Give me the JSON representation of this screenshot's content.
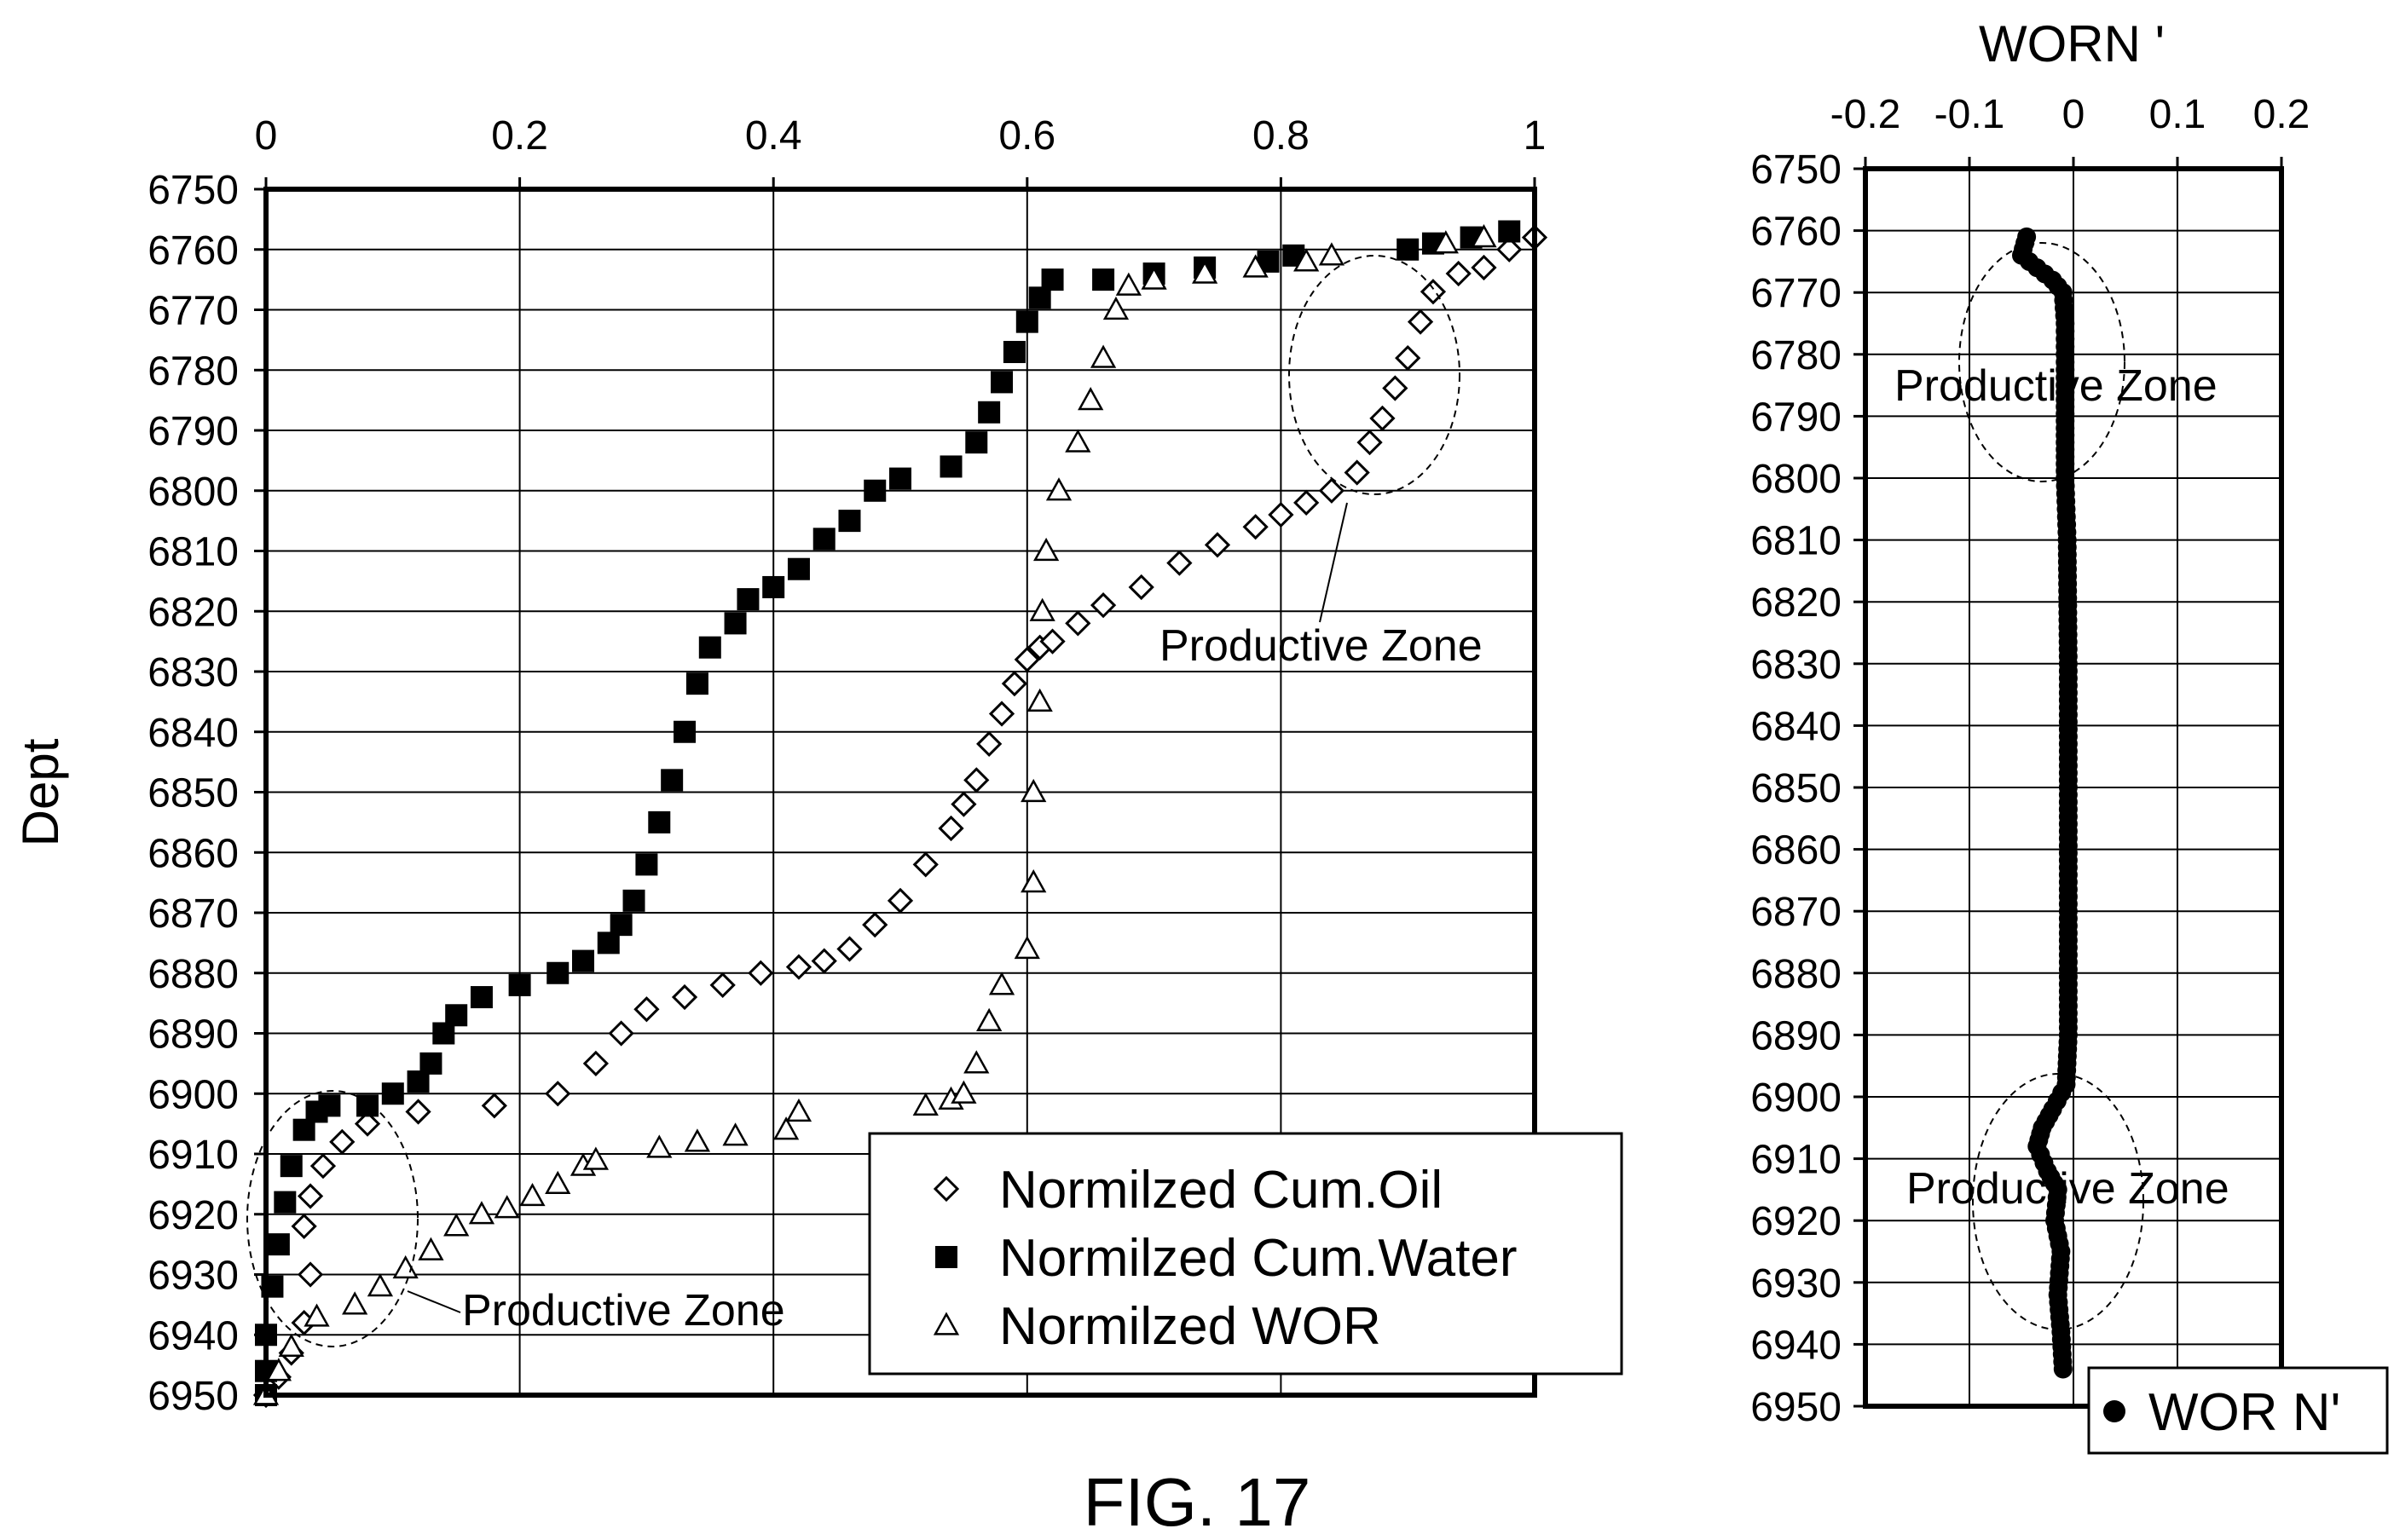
{
  "caption": "FIG. 17",
  "chart_data": [
    {
      "type": "scatter",
      "title": "",
      "xlabel": "",
      "ylabel": "Dept",
      "xlim": [
        0,
        1
      ],
      "ylim": [
        6750,
        6950
      ],
      "y_reversed": true,
      "x_axis_position": "top",
      "x_ticks": [
        "0",
        "0.2",
        "0.4",
        "0.6",
        "0.8",
        "1"
      ],
      "y_ticks": [
        "6750",
        "6760",
        "6770",
        "6780",
        "6790",
        "6800",
        "6810",
        "6820",
        "6830",
        "6840",
        "6850",
        "6860",
        "6870",
        "6880",
        "6890",
        "6900",
        "6910",
        "6920",
        "6930",
        "6940",
        "6950"
      ],
      "grid": true,
      "legend_position": "bottom-right",
      "annotations": [
        "Productive Zone",
        "Productive Zone"
      ],
      "series": [
        {
          "name": "Normilzed Cum.Oil",
          "marker": "diamond-open",
          "points": [
            [
              0.0,
              6950
            ],
            [
              0.01,
              6947
            ],
            [
              0.02,
              6943
            ],
            [
              0.03,
              6938
            ],
            [
              0.035,
              6930
            ],
            [
              0.03,
              6922
            ],
            [
              0.035,
              6917
            ],
            [
              0.045,
              6912
            ],
            [
              0.06,
              6908
            ],
            [
              0.08,
              6905
            ],
            [
              0.12,
              6903
            ],
            [
              0.18,
              6902
            ],
            [
              0.23,
              6900
            ],
            [
              0.26,
              6895
            ],
            [
              0.28,
              6890
            ],
            [
              0.3,
              6886
            ],
            [
              0.33,
              6884
            ],
            [
              0.36,
              6882
            ],
            [
              0.39,
              6880
            ],
            [
              0.42,
              6879
            ],
            [
              0.44,
              6878
            ],
            [
              0.46,
              6876
            ],
            [
              0.48,
              6872
            ],
            [
              0.5,
              6868
            ],
            [
              0.52,
              6862
            ],
            [
              0.54,
              6856
            ],
            [
              0.55,
              6852
            ],
            [
              0.56,
              6848
            ],
            [
              0.57,
              6842
            ],
            [
              0.58,
              6837
            ],
            [
              0.59,
              6832
            ],
            [
              0.6,
              6828
            ],
            [
              0.61,
              6826
            ],
            [
              0.62,
              6825
            ],
            [
              0.64,
              6822
            ],
            [
              0.66,
              6819
            ],
            [
              0.69,
              6816
            ],
            [
              0.72,
              6812
            ],
            [
              0.75,
              6809
            ],
            [
              0.78,
              6806
            ],
            [
              0.8,
              6804
            ],
            [
              0.82,
              6802
            ],
            [
              0.84,
              6800
            ],
            [
              0.86,
              6797
            ],
            [
              0.87,
              6792
            ],
            [
              0.88,
              6788
            ],
            [
              0.89,
              6783
            ],
            [
              0.9,
              6778
            ],
            [
              0.91,
              6772
            ],
            [
              0.92,
              6767
            ],
            [
              0.94,
              6764
            ],
            [
              0.96,
              6763
            ],
            [
              0.98,
              6760
            ],
            [
              1.0,
              6758
            ]
          ]
        },
        {
          "name": "Normilzed Cum.Water",
          "marker": "square-filled",
          "points": [
            [
              0.0,
              6950
            ],
            [
              0.0,
              6946
            ],
            [
              0.0,
              6940
            ],
            [
              0.005,
              6932
            ],
            [
              0.01,
              6925
            ],
            [
              0.015,
              6918
            ],
            [
              0.02,
              6912
            ],
            [
              0.03,
              6906
            ],
            [
              0.04,
              6903
            ],
            [
              0.05,
              6902
            ],
            [
              0.08,
              6902
            ],
            [
              0.1,
              6900
            ],
            [
              0.12,
              6898
            ],
            [
              0.13,
              6895
            ],
            [
              0.14,
              6890
            ],
            [
              0.15,
              6887
            ],
            [
              0.17,
              6884
            ],
            [
              0.2,
              6882
            ],
            [
              0.23,
              6880
            ],
            [
              0.25,
              6878
            ],
            [
              0.27,
              6875
            ],
            [
              0.28,
              6872
            ],
            [
              0.29,
              6868
            ],
            [
              0.3,
              6862
            ],
            [
              0.31,
              6855
            ],
            [
              0.32,
              6848
            ],
            [
              0.33,
              6840
            ],
            [
              0.34,
              6832
            ],
            [
              0.35,
              6826
            ],
            [
              0.37,
              6822
            ],
            [
              0.38,
              6818
            ],
            [
              0.4,
              6816
            ],
            [
              0.42,
              6813
            ],
            [
              0.44,
              6808
            ],
            [
              0.46,
              6805
            ],
            [
              0.48,
              6800
            ],
            [
              0.5,
              6798
            ],
            [
              0.54,
              6796
            ],
            [
              0.56,
              6792
            ],
            [
              0.57,
              6787
            ],
            [
              0.58,
              6782
            ],
            [
              0.59,
              6777
            ],
            [
              0.6,
              6772
            ],
            [
              0.61,
              6768
            ],
            [
              0.62,
              6765
            ],
            [
              0.66,
              6765
            ],
            [
              0.7,
              6764
            ],
            [
              0.74,
              6763
            ],
            [
              0.79,
              6762
            ],
            [
              0.81,
              6761
            ],
            [
              0.9,
              6760
            ],
            [
              0.92,
              6759
            ],
            [
              0.95,
              6758
            ],
            [
              0.98,
              6757
            ]
          ]
        },
        {
          "name": "Normilzed WOR",
          "marker": "triangle-open",
          "points": [
            [
              0.0,
              6950
            ],
            [
              0.01,
              6946
            ],
            [
              0.02,
              6942
            ],
            [
              0.04,
              6937
            ],
            [
              0.07,
              6935
            ],
            [
              0.09,
              6932
            ],
            [
              0.11,
              6929
            ],
            [
              0.13,
              6926
            ],
            [
              0.15,
              6922
            ],
            [
              0.17,
              6920
            ],
            [
              0.19,
              6919
            ],
            [
              0.21,
              6917
            ],
            [
              0.23,
              6915
            ],
            [
              0.25,
              6912
            ],
            [
              0.26,
              6911
            ],
            [
              0.31,
              6909
            ],
            [
              0.34,
              6908
            ],
            [
              0.37,
              6907
            ],
            [
              0.41,
              6906
            ],
            [
              0.42,
              6903
            ],
            [
              0.52,
              6902
            ],
            [
              0.54,
              6901
            ],
            [
              0.55,
              6900
            ],
            [
              0.56,
              6895
            ],
            [
              0.57,
              6888
            ],
            [
              0.58,
              6882
            ],
            [
              0.6,
              6876
            ],
            [
              0.605,
              6865
            ],
            [
              0.605,
              6850
            ],
            [
              0.61,
              6835
            ],
            [
              0.612,
              6820
            ],
            [
              0.615,
              6810
            ],
            [
              0.625,
              6800
            ],
            [
              0.64,
              6792
            ],
            [
              0.65,
              6785
            ],
            [
              0.66,
              6778
            ],
            [
              0.67,
              6770
            ],
            [
              0.68,
              6766
            ],
            [
              0.7,
              6765
            ],
            [
              0.74,
              6764
            ],
            [
              0.78,
              6763
            ],
            [
              0.82,
              6762
            ],
            [
              0.84,
              6761
            ],
            [
              0.93,
              6759
            ],
            [
              0.96,
              6758
            ]
          ]
        }
      ]
    },
    {
      "type": "scatter",
      "title": "WORN '",
      "xlabel": "",
      "ylabel": "",
      "xlim": [
        -0.2,
        0.2
      ],
      "ylim": [
        6750,
        6950
      ],
      "y_reversed": true,
      "x_axis_position": "top",
      "x_ticks": [
        "-0.2",
        "-0.1",
        "0",
        "0.1",
        "0.2"
      ],
      "y_ticks": [
        "6750",
        "6760",
        "6770",
        "6780",
        "6790",
        "6800",
        "6810",
        "6820",
        "6830",
        "6840",
        "6850",
        "6860",
        "6870",
        "6880",
        "6890",
        "6900",
        "6910",
        "6920",
        "6930",
        "6940",
        "6950"
      ],
      "grid": true,
      "legend_position": "bottom-right",
      "annotations": [
        "Productive Zone",
        "Productive Zone"
      ],
      "series": [
        {
          "name": "WOR N'",
          "marker": "circle-filled",
          "points": [
            [
              -0.045,
              6761
            ],
            [
              -0.05,
              6764
            ],
            [
              -0.035,
              6766
            ],
            [
              -0.02,
              6768
            ],
            [
              -0.01,
              6770
            ],
            [
              -0.008,
              6775
            ],
            [
              -0.008,
              6785
            ],
            [
              -0.008,
              6800
            ],
            [
              -0.006,
              6810
            ],
            [
              -0.005,
              6830
            ],
            [
              -0.005,
              6850
            ],
            [
              -0.005,
              6870
            ],
            [
              -0.005,
              6890
            ],
            [
              -0.007,
              6898
            ],
            [
              -0.02,
              6902
            ],
            [
              -0.03,
              6905
            ],
            [
              -0.035,
              6908
            ],
            [
              -0.025,
              6912
            ],
            [
              -0.015,
              6915
            ],
            [
              -0.018,
              6920
            ],
            [
              -0.012,
              6925
            ],
            [
              -0.015,
              6932
            ],
            [
              -0.012,
              6938
            ],
            [
              -0.01,
              6944
            ]
          ]
        }
      ]
    }
  ]
}
